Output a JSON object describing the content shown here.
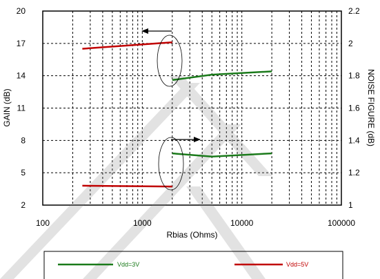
{
  "chart_data": {
    "type": "line",
    "xlabel": "Rbias (Ohms)",
    "ylabel_left": "GAIN (dB)",
    "ylabel_right": "NOISE FIGURE (dB)",
    "x_scale": "log",
    "xlim": [
      100,
      100000
    ],
    "x_ticks": [
      "100",
      "1000",
      "10000",
      "100000"
    ],
    "ylim_left": [
      2,
      20
    ],
    "y_ticks_left": [
      "2",
      "5",
      "8",
      "11",
      "14",
      "17",
      "20"
    ],
    "ylim_right": [
      1,
      2.2
    ],
    "y_ticks_right": [
      "1",
      "1.2",
      "1.4",
      "1.6",
      "1.8",
      "2",
      "2.2"
    ],
    "grid": true,
    "series": [
      {
        "name": "Vdd=5V",
        "group": "gain",
        "color": "#c00000",
        "axis": "left",
        "points": [
          [
            250,
            16.5
          ],
          [
            2000,
            17.1
          ]
        ]
      },
      {
        "name": "Vdd=3V",
        "group": "gain",
        "color": "#1a7a1a",
        "axis": "left",
        "points": [
          [
            2000,
            13.6
          ],
          [
            5000,
            14.1
          ],
          [
            20000,
            14.4
          ]
        ]
      },
      {
        "name": "Vdd=3V",
        "group": "noise_figure",
        "color": "#1a7a1a",
        "axis": "right",
        "points": [
          [
            2000,
            1.32
          ],
          [
            5000,
            1.3
          ],
          [
            20000,
            1.32
          ]
        ]
      },
      {
        "name": "Vdd=5V",
        "group": "noise_figure",
        "color": "#c00000",
        "axis": "right",
        "points": [
          [
            250,
            1.12
          ],
          [
            2000,
            1.115
          ]
        ]
      }
    ],
    "legend": {
      "placement": "bottom",
      "entries": [
        {
          "label": "Vdd=3V",
          "color": "#1a7a1a"
        },
        {
          "label": "Vdd=5V",
          "color": "#c00000"
        }
      ]
    }
  }
}
